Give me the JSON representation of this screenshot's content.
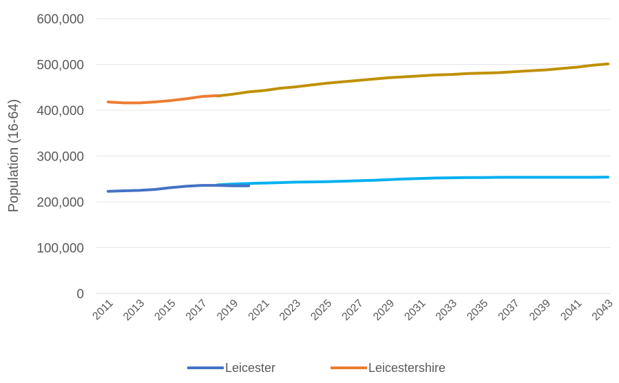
{
  "chart_data": {
    "type": "line",
    "title": "",
    "xlabel": "",
    "ylabel": "Population (16-64)",
    "ylim": [
      0,
      600000
    ],
    "yticks": [
      0,
      100000,
      200000,
      300000,
      400000,
      500000,
      600000
    ],
    "ytick_labels": [
      "0",
      "100,000",
      "200,000",
      "300,000",
      "400,000",
      "500,000",
      "600,000"
    ],
    "x_tick_labels": [
      "2011",
      "2013",
      "2015",
      "2017",
      "2019",
      "2021",
      "2023",
      "2025",
      "2027",
      "2029",
      "2031",
      "2033",
      "2035",
      "2037",
      "2039",
      "2041",
      "2043"
    ],
    "xlim": [
      2011,
      2043
    ],
    "grid": true,
    "legend_position": "bottom",
    "legend": [
      {
        "name": "Leicester",
        "color": "#4472C4"
      },
      {
        "name": "Leicestershire",
        "color": "#ED7D31"
      }
    ],
    "series": [
      {
        "name": "Leicester",
        "color": "#4472C4",
        "x": [
          2011,
          2012,
          2013,
          2014,
          2015,
          2016,
          2017,
          2018,
          2019,
          2020
        ],
        "values": [
          223000,
          224000,
          225000,
          227000,
          231000,
          234000,
          236000,
          236000,
          235000,
          235000
        ]
      },
      {
        "name": "",
        "color": "#00B0F0",
        "x": [
          2018,
          2019,
          2020,
          2021,
          2022,
          2023,
          2024,
          2025,
          2026,
          2027,
          2028,
          2029,
          2030,
          2031,
          2032,
          2033,
          2034,
          2035,
          2036,
          2037,
          2038,
          2039,
          2040,
          2041,
          2042,
          2043
        ],
        "values": [
          237000,
          239000,
          240000,
          241000,
          242000,
          243000,
          243500,
          244000,
          245000,
          246000,
          247000,
          248500,
          250000,
          251000,
          252000,
          252500,
          253000,
          253000,
          253500,
          253500,
          253500,
          253500,
          253500,
          253500,
          253500,
          254000
        ]
      },
      {
        "name": "Leicestershire",
        "color": "#ED7D31",
        "x": [
          2011,
          2012,
          2013,
          2014,
          2015,
          2016,
          2017,
          2018
        ],
        "values": [
          418000,
          416000,
          416000,
          418000,
          421000,
          425000,
          430000,
          432000
        ]
      },
      {
        "name": "",
        "color": "#BF9000",
        "x": [
          2018,
          2019,
          2020,
          2021,
          2022,
          2023,
          2024,
          2025,
          2026,
          2027,
          2028,
          2029,
          2030,
          2031,
          2032,
          2033,
          2034,
          2035,
          2036,
          2037,
          2038,
          2039,
          2040,
          2041,
          2042,
          2043
        ],
        "values": [
          431000,
          435000,
          440000,
          443000,
          448000,
          451000,
          455000,
          459000,
          462000,
          465000,
          468000,
          471000,
          473000,
          475000,
          477000,
          478000,
          480000,
          481000,
          482000,
          484000,
          486000,
          488000,
          491000,
          494000,
          498000,
          501000
        ]
      }
    ]
  }
}
